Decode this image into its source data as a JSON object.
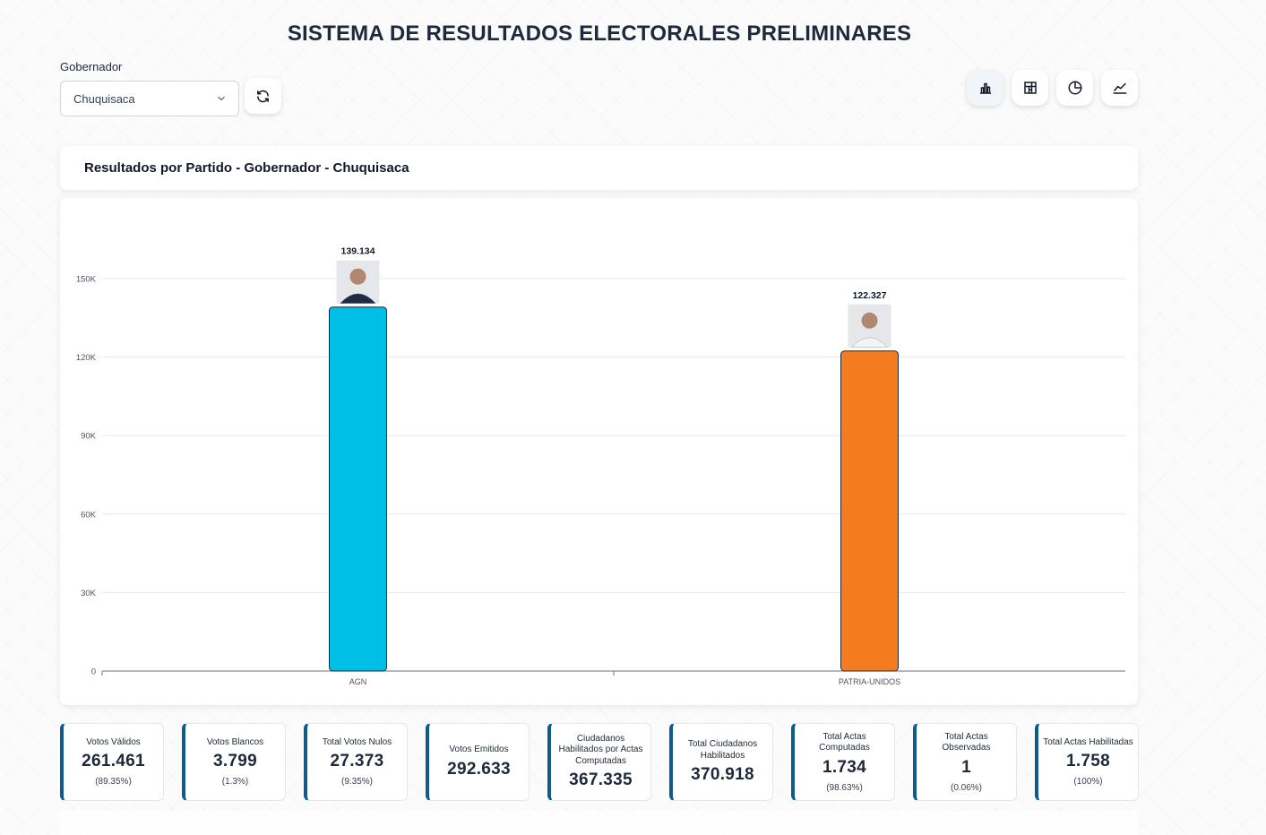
{
  "page": {
    "title": "SISTEMA DE RESULTADOS ELECTORALES PRELIMINARES"
  },
  "filter": {
    "label": "Gobernador",
    "selected": "Chuquisaca"
  },
  "view_buttons": [
    {
      "icon": "bar-chart-icon"
    },
    {
      "icon": "treemap-icon"
    },
    {
      "icon": "pie-chart-icon"
    },
    {
      "icon": "line-chart-icon"
    }
  ],
  "chart_header": "Resultados por Partido - Gobernador - Chuquisaca",
  "chart_data": {
    "type": "bar",
    "title": "Resultados por Partido - Gobernador - Chuquisaca",
    "categories": [
      "AGN",
      "PATRIA-UNIDOS"
    ],
    "values": [
      139134,
      122327
    ],
    "value_labels": [
      "139.134",
      "122.327"
    ],
    "colors": [
      "#00bfe7",
      "#f57b20"
    ],
    "ylim": [
      0,
      150000
    ],
    "yticks": [
      0,
      30000,
      60000,
      90000,
      120000,
      150000
    ],
    "ytick_labels": [
      "0",
      "30K",
      "60K",
      "90K",
      "120K",
      "150K"
    ],
    "xlabel": "",
    "ylabel": "",
    "grid": true,
    "legend": "none"
  },
  "stats": [
    {
      "label": "Votos Válidos",
      "value": "261.461",
      "pct": "(89.35%)"
    },
    {
      "label": "Votos Blancos",
      "value": "3.799",
      "pct": "(1.3%)"
    },
    {
      "label": "Total Votos Nulos",
      "value": "27.373",
      "pct": "(9.35%)"
    },
    {
      "label": "Votos Emitidos",
      "value": "292.633",
      "pct": ""
    },
    {
      "label": "Ciudadanos Habilitados por Actas Computadas",
      "value": "367.335",
      "pct": ""
    },
    {
      "label": "Total Ciudadanos Habilitados",
      "value": "370.918",
      "pct": ""
    },
    {
      "label": "Total Actas Computadas",
      "value": "1.734",
      "pct": "(98.63%)"
    },
    {
      "label": "Total Actas Observadas",
      "value": "1",
      "pct": "(0.06%)"
    },
    {
      "label": "Total Actas Habilitadas",
      "value": "1.758",
      "pct": "(100%)"
    }
  ]
}
